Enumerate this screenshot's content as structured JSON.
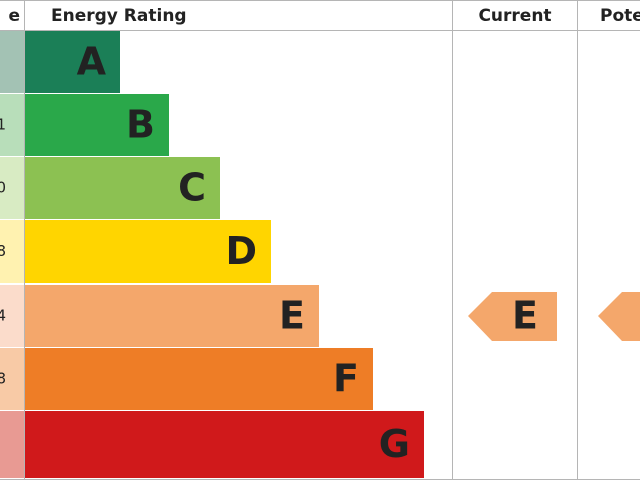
{
  "header": {
    "score": "e",
    "rating": "Energy Rating",
    "current": "Current",
    "potential": "Pote"
  },
  "bands": [
    {
      "letter": "A",
      "color": "#1b7f57",
      "tint": "#a3c2b4"
    },
    {
      "letter": "B",
      "color": "#2aa84a",
      "tint": "#b8deba",
      "score": "1"
    },
    {
      "letter": "C",
      "color": "#8cc152",
      "tint": "#d8ebc3",
      "score": "0"
    },
    {
      "letter": "D",
      "color": "#ffd500",
      "tint": "#fff2b0",
      "score": "8"
    },
    {
      "letter": "E",
      "color": "#f4a76b",
      "tint": "#fbdccb",
      "score": "4"
    },
    {
      "letter": "F",
      "color": "#ee7d26",
      "tint": "#f8caa6",
      "score": "8"
    },
    {
      "letter": "G",
      "color": "#d0191b",
      "tint": "#e89a93"
    }
  ],
  "current": {
    "letter": "E",
    "color": "#f4a76b"
  }
}
